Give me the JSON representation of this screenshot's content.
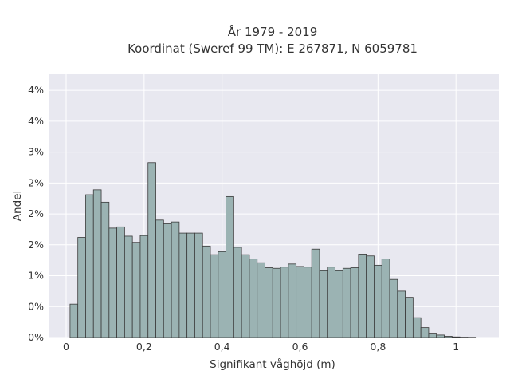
{
  "chart_data": {
    "type": "bar",
    "title": "År 1979 - 2019",
    "subtitle": "Koordinat (Sweref 99 TM): E 267871, N 6059781",
    "xlabel": "Signifikant våghöjd (m)",
    "ylabel": "Andel",
    "xlim": [
      -0.045,
      1.11
    ],
    "ylim": [
      0,
      0.0426
    ],
    "x_ticks": [
      0,
      0.2,
      0.4,
      0.6,
      0.8,
      1
    ],
    "x_tick_labels": [
      "0",
      "0,2",
      "0,4",
      "0,6",
      "0,8",
      "1"
    ],
    "y_ticks": [
      0,
      0.005,
      0.01,
      0.015,
      0.02,
      0.025,
      0.03,
      0.035,
      0.04
    ],
    "y_tick_labels": [
      "0%",
      "0%",
      "1%",
      "2%",
      "2%",
      "2%",
      "3%",
      "4%",
      "4%"
    ],
    "bin_width": 0.02,
    "bin_starts": [
      0.01,
      0.03,
      0.05,
      0.07,
      0.09,
      0.11,
      0.13,
      0.15,
      0.17,
      0.19,
      0.21,
      0.23,
      0.25,
      0.27,
      0.29,
      0.31,
      0.33,
      0.35,
      0.37,
      0.39,
      0.41,
      0.43,
      0.45,
      0.47,
      0.49,
      0.51,
      0.53,
      0.55,
      0.57,
      0.59,
      0.61,
      0.63,
      0.65,
      0.67,
      0.69,
      0.71,
      0.73,
      0.75,
      0.77,
      0.79,
      0.81,
      0.83,
      0.85,
      0.87,
      0.89,
      0.91,
      0.93,
      0.95,
      0.97,
      0.99,
      1.01,
      1.03
    ],
    "values": [
      0.0054,
      0.0162,
      0.0231,
      0.0239,
      0.0219,
      0.0177,
      0.0179,
      0.0164,
      0.0154,
      0.0165,
      0.0283,
      0.019,
      0.0184,
      0.0187,
      0.0169,
      0.0169,
      0.0169,
      0.0148,
      0.0134,
      0.0139,
      0.0228,
      0.0146,
      0.0134,
      0.0127,
      0.0121,
      0.0113,
      0.0112,
      0.0114,
      0.0119,
      0.0115,
      0.0114,
      0.0143,
      0.0108,
      0.0114,
      0.0108,
      0.0112,
      0.0113,
      0.0135,
      0.0132,
      0.0117,
      0.0127,
      0.0094,
      0.0075,
      0.0065,
      0.0032,
      0.0016,
      0.0007,
      0.0004,
      0.0002,
      0.0001,
      5e-05,
      3e-05
    ],
    "grid": true,
    "colors": {
      "bar": "#9bb3b3",
      "edge": "#3a3a3a",
      "plot_bg": "#e8e8f0",
      "grid": "#ffffff"
    }
  }
}
